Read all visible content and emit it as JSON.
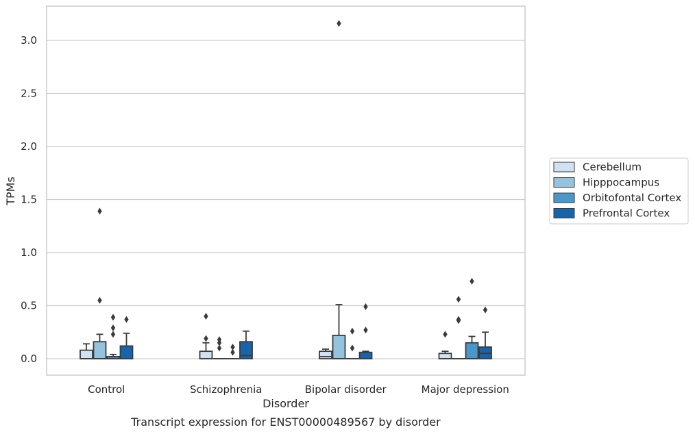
{
  "chart_data": {
    "type": "box",
    "title": "Transcript expression for ENST00000489567 by disorder",
    "xlabel": "Disorder",
    "ylabel": "TPMs",
    "ylim": [
      -0.15,
      3.3
    ],
    "yticks": [
      0.0,
      0.5,
      1.0,
      1.5,
      2.0,
      2.5,
      3.0
    ],
    "ytick_labels": [
      "0.0",
      "0.5",
      "1.0",
      "1.5",
      "2.0",
      "2.5",
      "3.0"
    ],
    "grid": "horizontal",
    "legend_position": "right",
    "categories": [
      "Control",
      "Schizophrenia",
      "Bipolar disorder",
      "Major depression"
    ],
    "series": [
      {
        "name": "Cerebellum",
        "color": "#d0e1f1",
        "boxes": [
          {
            "q1": 0.0,
            "median": 0.0,
            "q3": 0.08,
            "whislo": 0.0,
            "whishi": 0.14,
            "fliers": []
          },
          {
            "q1": 0.0,
            "median": 0.0,
            "q3": 0.07,
            "whislo": 0.0,
            "whishi": 0.15,
            "fliers": [
              0.19,
              0.4
            ]
          },
          {
            "q1": 0.0,
            "median": 0.02,
            "q3": 0.07,
            "whislo": 0.0,
            "whishi": 0.09,
            "fliers": []
          },
          {
            "q1": 0.0,
            "median": 0.0,
            "q3": 0.05,
            "whislo": 0.0,
            "whishi": 0.07,
            "fliers": [
              0.23
            ]
          }
        ]
      },
      {
        "name": "Hipppocampus",
        "color": "#94c3df",
        "boxes": [
          {
            "q1": 0.0,
            "median": 0.0,
            "q3": 0.16,
            "whislo": 0.0,
            "whishi": 0.23,
            "fliers": [
              0.55,
              1.39
            ]
          },
          {
            "q1": 0.0,
            "median": 0.0,
            "q3": 0.0,
            "whislo": 0.0,
            "whishi": 0.0,
            "fliers": [
              0.1,
              0.15,
              0.18
            ]
          },
          {
            "q1": 0.0,
            "median": 0.0,
            "q3": 0.22,
            "whislo": 0.0,
            "whishi": 0.51,
            "fliers": [
              3.16
            ]
          },
          {
            "q1": 0.0,
            "median": 0.0,
            "q3": 0.0,
            "whislo": 0.0,
            "whishi": 0.0,
            "fliers": [
              0.36,
              0.37,
              0.56
            ]
          }
        ]
      },
      {
        "name": "Orbitofontal Cortex",
        "color": "#4a97c9",
        "boxes": [
          {
            "q1": 0.0,
            "median": 0.0,
            "q3": 0.02,
            "whislo": 0.0,
            "whishi": 0.04,
            "fliers": [
              0.23,
              0.29,
              0.39
            ]
          },
          {
            "q1": 0.0,
            "median": 0.0,
            "q3": 0.0,
            "whislo": 0.0,
            "whishi": 0.0,
            "fliers": [
              0.06,
              0.11
            ]
          },
          {
            "q1": 0.0,
            "median": 0.0,
            "q3": 0.0,
            "whislo": 0.0,
            "whishi": 0.0,
            "fliers": [
              0.1,
              0.26
            ]
          },
          {
            "q1": 0.0,
            "median": 0.0,
            "q3": 0.15,
            "whislo": 0.0,
            "whishi": 0.21,
            "fliers": [
              0.73
            ]
          }
        ]
      },
      {
        "name": "Prefrontal Cortex",
        "color": "#1764ab",
        "boxes": [
          {
            "q1": 0.0,
            "median": 0.0,
            "q3": 0.12,
            "whislo": 0.0,
            "whishi": 0.24,
            "fliers": [
              0.37
            ]
          },
          {
            "q1": 0.0,
            "median": 0.03,
            "q3": 0.16,
            "whislo": 0.0,
            "whishi": 0.26,
            "fliers": []
          },
          {
            "q1": 0.0,
            "median": 0.0,
            "q3": 0.06,
            "whislo": 0.0,
            "whishi": 0.07,
            "fliers": [
              0.27,
              0.49
            ]
          },
          {
            "q1": 0.0,
            "median": 0.05,
            "q3": 0.11,
            "whislo": 0.0,
            "whishi": 0.25,
            "fliers": [
              0.46
            ]
          }
        ]
      }
    ]
  }
}
